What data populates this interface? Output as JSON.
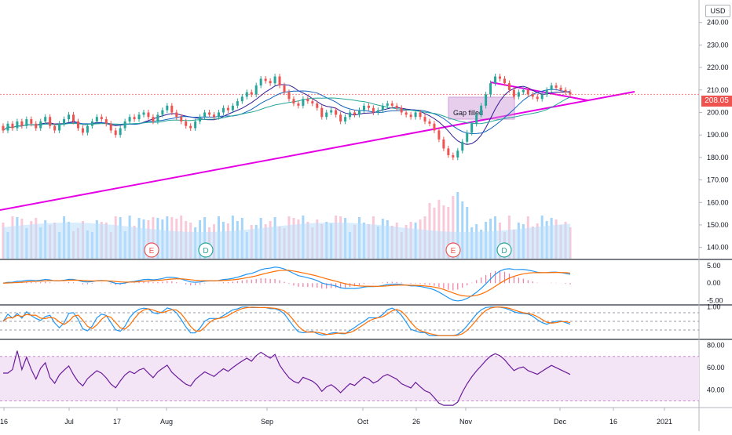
{
  "currency": "USD",
  "last_price": "208.05",
  "annotations": {
    "gap_label": "Gap filled"
  },
  "event_markers": [
    "E",
    "D",
    "E",
    "D"
  ],
  "colors": {
    "up": "#26a69a",
    "down": "#ef5350",
    "trend": "#e600e6",
    "volume": "#64b5f6",
    "macd": "#2196f3",
    "signal": "#ff6d00",
    "rsi": "#6a1b9a",
    "rsi_band": "#f3e5f5",
    "gap_box": "#ce93d8"
  },
  "chart_data": [
    {
      "type": "candlestick",
      "y_ticks": [
        "240.00",
        "230.00",
        "220.00",
        "210.00",
        "200.00",
        "190.00",
        "180.00",
        "170.00",
        "160.00",
        "150.00",
        "140.00"
      ],
      "ylim": [
        135,
        250
      ],
      "x_ticks": [
        "16",
        "Jul",
        "17",
        "Aug",
        "Sep",
        "Oct",
        "26",
        "Nov",
        "Dec",
        "16",
        "2021"
      ],
      "close_start": 194,
      "closes": [
        192,
        195,
        193,
        196,
        194,
        197,
        195,
        193,
        196,
        198,
        194,
        192,
        195,
        197,
        199,
        196,
        193,
        191,
        194,
        196,
        198,
        197,
        195,
        192,
        190,
        193,
        196,
        198,
        197,
        199,
        200,
        198,
        196,
        199,
        201,
        203,
        200,
        198,
        196,
        194,
        193,
        196,
        198,
        200,
        199,
        198,
        200,
        202,
        201,
        203,
        205,
        207,
        209,
        208,
        212,
        215,
        214,
        213,
        216,
        212,
        209,
        206,
        204,
        203,
        206,
        205,
        204,
        202,
        198,
        200,
        201,
        199,
        196,
        198,
        200,
        199,
        201,
        203,
        202,
        200,
        201,
        203,
        204,
        203,
        202,
        200,
        199,
        198,
        200,
        198,
        196,
        195,
        192,
        188,
        184,
        181,
        180,
        183,
        187,
        191,
        195,
        199,
        203,
        208,
        213,
        216,
        215,
        213,
        210,
        207,
        209,
        210,
        208,
        207,
        206,
        208,
        210,
        212,
        211,
        210,
        209,
        208
      ]
    },
    {
      "type": "bar",
      "series": "volume"
    },
    {
      "type": "line",
      "series": [
        "macd",
        "signal"
      ],
      "y_ticks": [
        "5.00",
        "0.00",
        "-5.00"
      ],
      "ylim": [
        -6,
        7
      ]
    },
    {
      "type": "line",
      "series": [
        "stoch_k",
        "stoch_d"
      ],
      "y_ticks": [
        "1.00"
      ],
      "ylim": [
        -0.1,
        1.1
      ]
    },
    {
      "type": "line",
      "series": "rsi",
      "y_ticks": [
        "80.00",
        "60.00",
        "40.00"
      ],
      "ylim": [
        24,
        86
      ]
    }
  ]
}
